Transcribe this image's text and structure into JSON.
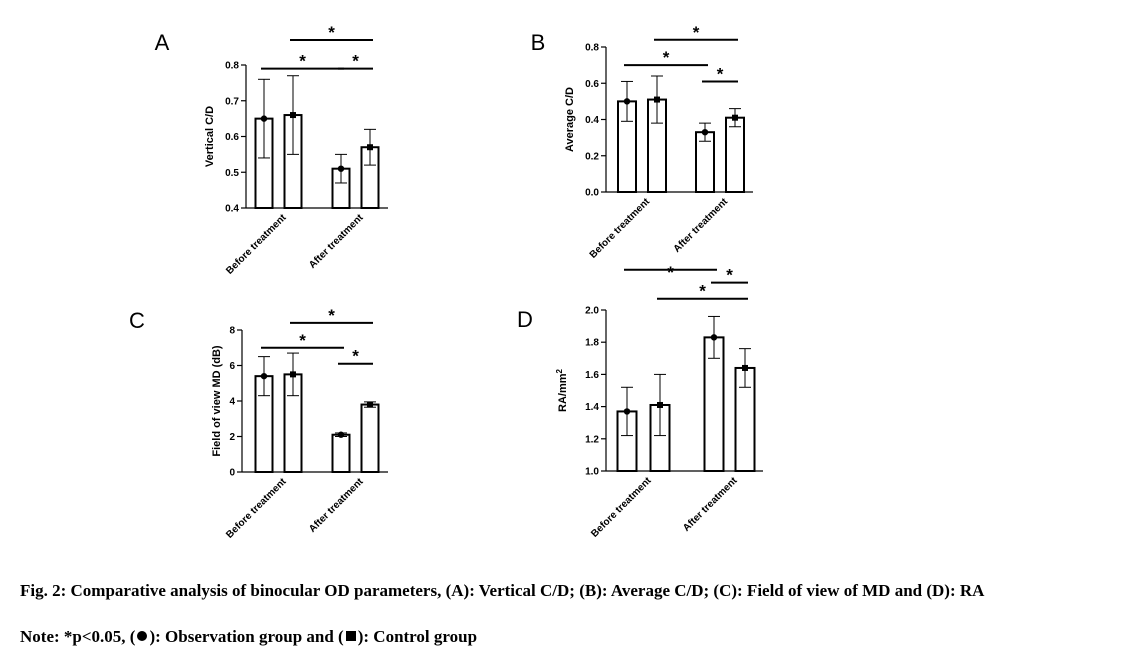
{
  "caption": {
    "text": "Fig. 2: Comparative analysis of binocular OD parameters, (A): Vertical C/D; (B): Average C/D; (C): Field of view of MD and (D): RA",
    "note_prefix": "Note: *p<0.05, (",
    "note_mid": "): Observation group and (",
    "note_end": "): Control group"
  },
  "chart_data": [
    {
      "panel": "A",
      "type": "bar",
      "ylabel": "Vertical C/D",
      "ylim": [
        0.4,
        0.8
      ],
      "yticks": [
        0.4,
        0.5,
        0.6,
        0.7,
        0.8
      ],
      "ytick_labels": [
        "0.4",
        "0.5",
        "0.6",
        "0.7",
        "0.8"
      ],
      "categories": [
        "Before treatment",
        "After treatment"
      ],
      "series": [
        {
          "marker": "circle",
          "values": [
            0.65,
            0.51
          ],
          "errors": [
            0.11,
            0.04
          ]
        },
        {
          "marker": "square",
          "values": [
            0.66,
            0.57
          ],
          "errors": [
            0.11,
            0.05
          ]
        }
      ],
      "significance": [
        {
          "from": [
            0,
            0
          ],
          "to": [
            1,
            0
          ],
          "y": 0.79,
          "label": "*"
        },
        {
          "from": [
            0,
            1
          ],
          "to": [
            1,
            1
          ],
          "y": 0.87,
          "label": "*"
        },
        {
          "from": [
            1,
            0
          ],
          "to": [
            1,
            1
          ],
          "y": 0.79,
          "label": "*"
        }
      ]
    },
    {
      "panel": "B",
      "type": "bar",
      "ylabel": "Average C/D",
      "ylim": [
        0.0,
        0.8
      ],
      "yticks": [
        0.0,
        0.2,
        0.4,
        0.6,
        0.8
      ],
      "ytick_labels": [
        "0.0",
        "0.2",
        "0.4",
        "0.6",
        "0.8"
      ],
      "categories": [
        "Before treatment",
        "After treatment"
      ],
      "series": [
        {
          "marker": "circle",
          "values": [
            0.5,
            0.33
          ],
          "errors": [
            0.11,
            0.05
          ]
        },
        {
          "marker": "square",
          "values": [
            0.51,
            0.41
          ],
          "errors": [
            0.13,
            0.05
          ]
        }
      ],
      "significance": [
        {
          "from": [
            0,
            0
          ],
          "to": [
            1,
            0
          ],
          "y": 0.7,
          "label": "*"
        },
        {
          "from": [
            0,
            1
          ],
          "to": [
            1,
            1
          ],
          "y": 0.84,
          "label": "*"
        },
        {
          "from": [
            1,
            0
          ],
          "to": [
            1,
            1
          ],
          "y": 0.61,
          "label": "*"
        }
      ]
    },
    {
      "panel": "C",
      "type": "bar",
      "ylabel": "Field of view MD (dB)",
      "ylim": [
        0,
        8
      ],
      "yticks": [
        0,
        2,
        4,
        6,
        8
      ],
      "ytick_labels": [
        "0",
        "2",
        "4",
        "6",
        "8"
      ],
      "categories": [
        "Before treatment",
        "After treatment"
      ],
      "series": [
        {
          "marker": "circle",
          "values": [
            5.4,
            2.1
          ],
          "errors": [
            1.1,
            0.1
          ]
        },
        {
          "marker": "square",
          "values": [
            5.5,
            3.8
          ],
          "errors": [
            1.2,
            0.15
          ]
        }
      ],
      "significance": [
        {
          "from": [
            0,
            0
          ],
          "to": [
            1,
            0
          ],
          "y": 7.0,
          "label": "*"
        },
        {
          "from": [
            0,
            1
          ],
          "to": [
            1,
            1
          ],
          "y": 8.4,
          "label": "*"
        },
        {
          "from": [
            1,
            0
          ],
          "to": [
            1,
            1
          ],
          "y": 6.1,
          "label": "*"
        }
      ]
    },
    {
      "panel": "D",
      "type": "bar",
      "ylabel": "RA/mm",
      "ylabel_sup": "2",
      "ylim": [
        1.0,
        2.0
      ],
      "yticks": [
        1.0,
        1.2,
        1.4,
        1.6,
        1.8,
        2.0
      ],
      "ytick_labels": [
        "1.0",
        "1.2",
        "1.4",
        "1.6",
        "1.8",
        "2.0"
      ],
      "categories": [
        "Before treatment",
        "After treatment"
      ],
      "series": [
        {
          "marker": "circle",
          "values": [
            1.37,
            1.83
          ],
          "errors": [
            0.15,
            0.13
          ]
        },
        {
          "marker": "square",
          "values": [
            1.41,
            1.64
          ],
          "errors": [
            0.19,
            0.12
          ]
        }
      ],
      "significance": [
        {
          "from": [
            0,
            0
          ],
          "to": [
            1,
            0
          ],
          "y": 2.25,
          "label": "*"
        },
        {
          "from": [
            0,
            1
          ],
          "to": [
            1,
            1
          ],
          "y": 2.07,
          "label": "*"
        },
        {
          "from": [
            1,
            0
          ],
          "to": [
            1,
            1
          ],
          "y": 2.17,
          "label": "*"
        }
      ]
    }
  ]
}
